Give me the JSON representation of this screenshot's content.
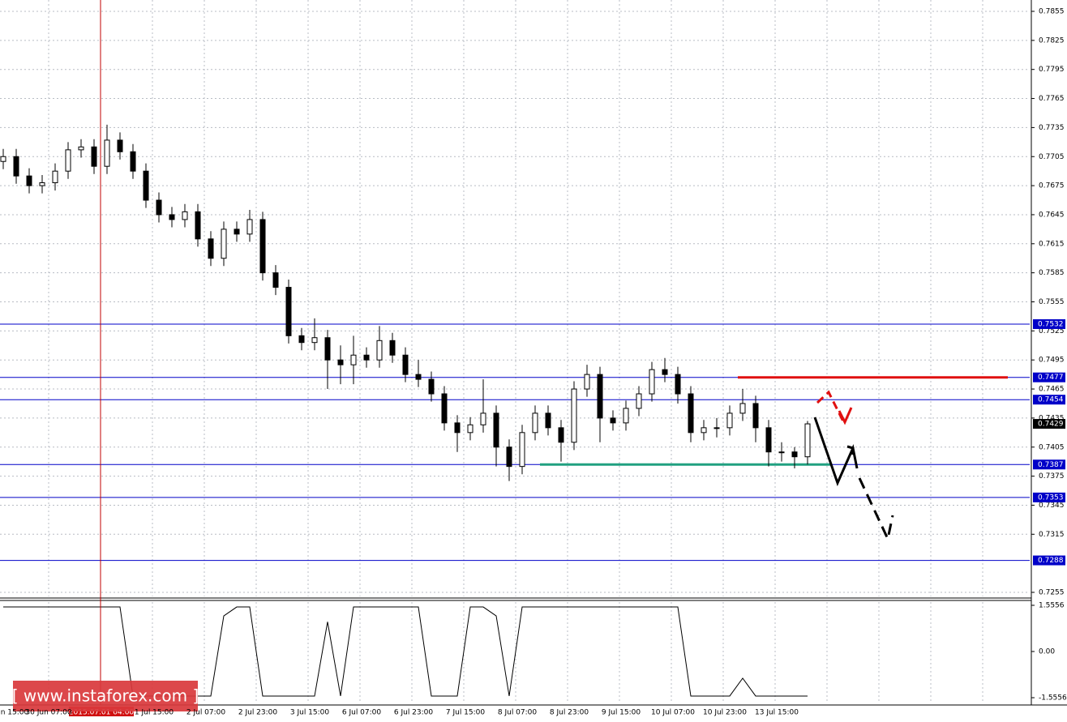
{
  "chart_data": {
    "type": "candlestick",
    "open": [
      0.77,
      0.7705,
      0.7685,
      0.7675,
      0.7678,
      0.769,
      0.7712,
      0.7715,
      0.7695,
      0.7722,
      0.771,
      0.769,
      0.766,
      0.7645,
      0.764,
      0.7648,
      0.762,
      0.76,
      0.763,
      0.7625,
      0.764,
      0.7585,
      0.757,
      0.752,
      0.7513,
      0.7518,
      0.7495,
      0.749,
      0.75,
      0.7495,
      0.7515,
      0.75,
      0.748,
      0.7475,
      0.746,
      0.743,
      0.742,
      0.7428,
      0.744,
      0.7405,
      0.7385,
      0.742,
      0.744,
      0.7425,
      0.741,
      0.7465,
      0.748,
      0.7435,
      0.743,
      0.7445,
      0.746,
      0.7485,
      0.748,
      0.746,
      0.742,
      0.7425,
      0.7425,
      0.744,
      0.745,
      0.7425,
      0.74,
      0.74,
      0.7395
    ],
    "high": [
      0.7713,
      0.7713,
      0.7693,
      0.7686,
      0.7698,
      0.772,
      0.7723,
      0.7723,
      0.7738,
      0.773,
      0.7718,
      0.7698,
      0.7668,
      0.7653,
      0.7656,
      0.7656,
      0.7628,
      0.7638,
      0.7638,
      0.765,
      0.7648,
      0.7593,
      0.7578,
      0.7528,
      0.7538,
      0.7526,
      0.751,
      0.752,
      0.7508,
      0.753,
      0.7523,
      0.7508,
      0.7495,
      0.7483,
      0.7468,
      0.7438,
      0.7436,
      0.7475,
      0.7448,
      0.7413,
      0.7428,
      0.7448,
      0.7448,
      0.7433,
      0.7473,
      0.749,
      0.7488,
      0.7443,
      0.7453,
      0.7468,
      0.7493,
      0.7497,
      0.7488,
      0.7468,
      0.7433,
      0.7435,
      0.7448,
      0.7465,
      0.7458,
      0.7433,
      0.741,
      0.7405,
      0.7432
    ],
    "low": [
      0.7692,
      0.7677,
      0.7667,
      0.7667,
      0.767,
      0.7682,
      0.7704,
      0.7687,
      0.7687,
      0.7702,
      0.7682,
      0.7652,
      0.7637,
      0.7632,
      0.7632,
      0.7612,
      0.7592,
      0.7592,
      0.7617,
      0.7617,
      0.7577,
      0.7562,
      0.7512,
      0.7505,
      0.7505,
      0.7465,
      0.747,
      0.747,
      0.7487,
      0.7487,
      0.7492,
      0.7472,
      0.7467,
      0.7452,
      0.7422,
      0.74,
      0.7412,
      0.742,
      0.7385,
      0.737,
      0.7377,
      0.7412,
      0.7417,
      0.739,
      0.7402,
      0.7457,
      0.741,
      0.7422,
      0.7422,
      0.7437,
      0.7452,
      0.7472,
      0.745,
      0.741,
      0.7412,
      0.7415,
      0.7417,
      0.7432,
      0.741,
      0.7385,
      0.739,
      0.7383,
      0.7387
    ],
    "close": [
      0.7705,
      0.7685,
      0.7675,
      0.7678,
      0.769,
      0.7712,
      0.7715,
      0.7695,
      0.7722,
      0.771,
      0.769,
      0.766,
      0.7645,
      0.764,
      0.7648,
      0.762,
      0.76,
      0.763,
      0.7625,
      0.764,
      0.7585,
      0.757,
      0.752,
      0.7513,
      0.7518,
      0.7495,
      0.749,
      0.75,
      0.7495,
      0.7515,
      0.75,
      0.748,
      0.7475,
      0.746,
      0.743,
      0.742,
      0.7428,
      0.744,
      0.7405,
      0.7385,
      0.742,
      0.744,
      0.7425,
      0.741,
      0.7465,
      0.748,
      0.7435,
      0.743,
      0.7445,
      0.746,
      0.7485,
      0.748,
      0.746,
      0.742,
      0.7425,
      0.7425,
      0.744,
      0.745,
      0.7425,
      0.74,
      0.74,
      0.7395,
      0.7429
    ],
    "ylim": [
      0.7255,
      0.7855
    ],
    "yticks": [
      0.7855,
      0.7825,
      0.7795,
      0.7765,
      0.7735,
      0.7705,
      0.7675,
      0.7645,
      0.7615,
      0.7585,
      0.7555,
      0.7525,
      0.7495,
      0.7465,
      0.7435,
      0.7405,
      0.7375,
      0.7345,
      0.7315,
      0.7255
    ],
    "levels": [
      0.7532,
      0.7477,
      0.7454,
      0.7387,
      0.7353,
      0.7288
    ],
    "level_color": "#0000c8",
    "current_price": 0.7429,
    "resistance": 0.7477,
    "resistance_color": "#e01010",
    "support": 0.7387,
    "support_color": "#20a080",
    "x_labels": [
      "n 15:00",
      "30 Jun 07:00",
      "1 Jul 15:00",
      "2 Jul 07:00",
      "2 Jul 23:00",
      "3 Jul 15:00",
      "6 Jul 07:00",
      "6 Jul 23:00",
      "7 Jul 15:00",
      "8 Jul 07:00",
      "8 Jul 23:00",
      "9 Jul 15:00",
      "10 Jul 07:00",
      "10 Jul 23:00",
      "13 Jul 15:00"
    ],
    "cursor_label": "2015.07.01 04:00",
    "grid": true,
    "indicator": {
      "values": [
        1.5,
        1.5,
        1.5,
        1.5,
        1.5,
        1.5,
        1.5,
        1.5,
        1.5,
        1.5,
        -1.5,
        -1.5,
        -1.5,
        -1.5,
        -1.5,
        -1.5,
        -1.5,
        1.2,
        1.5,
        1.5,
        -1.5,
        -1.5,
        -1.5,
        -1.5,
        -1.5,
        1.0,
        -1.5,
        1.5,
        1.5,
        1.5,
        1.5,
        1.5,
        1.5,
        -1.5,
        -1.5,
        -1.5,
        1.5,
        1.5,
        1.2,
        -1.5,
        1.5,
        1.5,
        1.5,
        1.5,
        1.5,
        1.5,
        1.5,
        1.5,
        1.5,
        1.5,
        1.5,
        1.5,
        1.5,
        -1.5,
        -1.5,
        -1.5,
        -1.5,
        -0.9,
        -1.5,
        -1.5,
        -1.5,
        -1.5,
        -1.5
      ],
      "ylim": [
        -1.5556,
        1.5556
      ],
      "yticks": [
        1.5556,
        {
          "value": 0,
          "label": "0.00"
        },
        -1.5556
      ]
    },
    "watermark": "[ www.instaforex.com ]"
  }
}
